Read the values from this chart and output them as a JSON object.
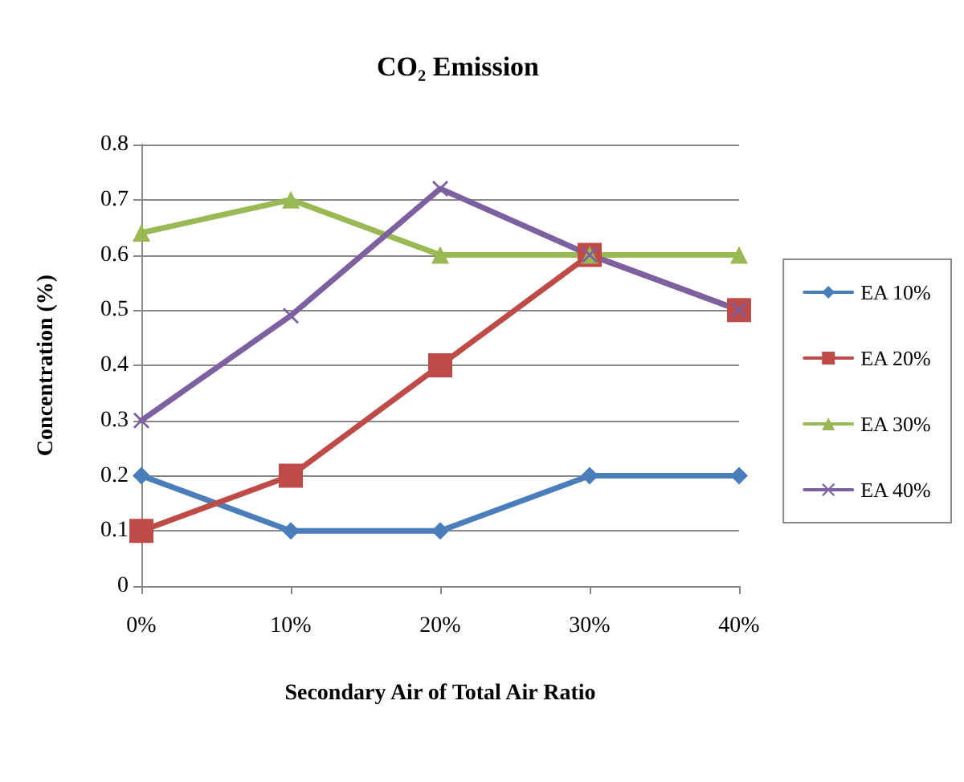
{
  "chart_data": {
    "type": "line",
    "title": "CO₂ Emission",
    "xlabel": "Secondary Air of Total Air Ratio",
    "ylabel": "Concentration (%)",
    "categories": [
      "0%",
      "10%",
      "20%",
      "30%",
      "40%"
    ],
    "series": [
      {
        "name": "EA 10%",
        "color": "#4a7ebb",
        "marker": "diamond",
        "values": [
          0.2,
          0.1,
          0.1,
          0.2,
          0.2
        ]
      },
      {
        "name": "EA 20%",
        "color": "#be4b48",
        "marker": "square",
        "values": [
          0.1,
          0.2,
          0.4,
          0.6,
          0.5
        ]
      },
      {
        "name": "EA 30%",
        "color": "#98b954",
        "marker": "triangle",
        "values": [
          0.64,
          0.7,
          0.6,
          0.6,
          0.6
        ]
      },
      {
        "name": "EA 40%",
        "color": "#7d60a0",
        "marker": "cross",
        "values": [
          0.3,
          0.49,
          0.72,
          0.6,
          0.5
        ]
      }
    ],
    "ylim": [
      0,
      0.8
    ],
    "yticks": [
      0,
      0.1,
      0.2,
      0.3,
      0.4,
      0.5,
      0.6,
      0.7,
      0.8
    ],
    "grid": "y",
    "legend": "right"
  }
}
